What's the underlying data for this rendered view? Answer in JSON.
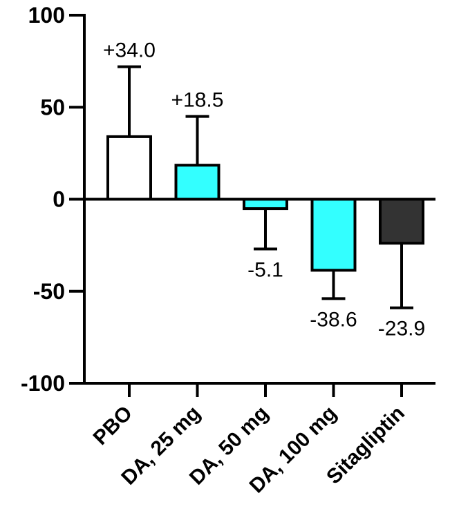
{
  "chart_data": {
    "type": "bar",
    "categories": [
      "PBO",
      "DA, 25 mg",
      "DA, 50 mg",
      "DA, 100 mg",
      "Sitagliptin"
    ],
    "values": [
      34.0,
      18.5,
      -5.1,
      -38.6,
      -23.9
    ],
    "error_bars": [
      72,
      45,
      -27,
      -54,
      -59
    ],
    "data_labels": [
      "+34.0",
      "+18.5",
      "-5.1",
      "-38.6",
      "-23.9"
    ],
    "bar_colors": [
      "#ffffff",
      "#33ffff",
      "#33ffff",
      "#33ffff",
      "#333333"
    ],
    "ylim": [
      -100,
      100
    ],
    "yticks": [
      100,
      50,
      0,
      -50,
      -100
    ],
    "ytick_labels": [
      "100",
      "50",
      "0",
      "-50",
      "-100"
    ],
    "title": "",
    "xlabel": "",
    "ylabel": "",
    "grid": false
  }
}
